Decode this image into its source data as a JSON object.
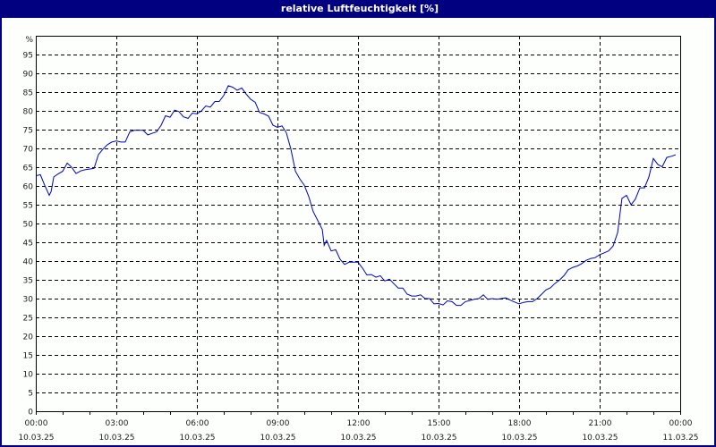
{
  "window": {
    "title": "relative Luftfeuchtigkeit [%]",
    "colors": {
      "titlebar": "#000080",
      "line": "#0000c0",
      "grid": "#000000",
      "background": "#fdfffd"
    }
  },
  "chart_data": {
    "type": "line",
    "title": "relative Luftfeuchtigkeit [%]",
    "xlabel": "",
    "ylabel": "%",
    "ylim": [
      0,
      100
    ],
    "xlim_hours": [
      0,
      24
    ],
    "grid": true,
    "grid_style": "dashed",
    "y_ticks": [
      0,
      5,
      10,
      15,
      20,
      25,
      30,
      35,
      40,
      45,
      50,
      55,
      60,
      65,
      70,
      75,
      80,
      85,
      90,
      95
    ],
    "y_unit_label": "%",
    "x_ticks": [
      {
        "hour": 0,
        "time": "00:00",
        "date": "10.03.25"
      },
      {
        "hour": 3,
        "time": "03:00",
        "date": "10.03.25"
      },
      {
        "hour": 6,
        "time": "06:00",
        "date": "10.03.25"
      },
      {
        "hour": 9,
        "time": "09:00",
        "date": "10.03.25"
      },
      {
        "hour": 12,
        "time": "12:00",
        "date": "10.03.25"
      },
      {
        "hour": 15,
        "time": "15:00",
        "date": "10.03.25"
      },
      {
        "hour": 18,
        "time": "18:00",
        "date": "10.03.25"
      },
      {
        "hour": 21,
        "time": "21:00",
        "date": "10.03.25"
      },
      {
        "hour": 24,
        "time": "00:00",
        "date": "11.03.25"
      }
    ],
    "series": [
      {
        "name": "relative Luftfeuchtigkeit",
        "x_hours": [
          0.0,
          0.17,
          0.33,
          0.5,
          0.57,
          0.67,
          0.83,
          1.0,
          1.17,
          1.33,
          1.5,
          1.67,
          1.83,
          2.0,
          2.17,
          2.33,
          2.5,
          2.67,
          2.83,
          3.0,
          3.17,
          3.33,
          3.5,
          3.67,
          3.83,
          4.0,
          4.17,
          4.33,
          4.5,
          4.67,
          4.83,
          5.0,
          5.17,
          5.33,
          5.5,
          5.67,
          5.83,
          6.0,
          6.17,
          6.33,
          6.5,
          6.67,
          6.83,
          7.0,
          7.17,
          7.33,
          7.5,
          7.67,
          7.83,
          8.0,
          8.17,
          8.33,
          8.5,
          8.67,
          8.83,
          9.0,
          9.17,
          9.33,
          9.5,
          9.67,
          9.83,
          10.0,
          10.17,
          10.33,
          10.5,
          10.67,
          10.74,
          10.83,
          11.0,
          11.17,
          11.33,
          11.5,
          11.67,
          11.83,
          12.0,
          12.17,
          12.33,
          12.5,
          12.67,
          12.83,
          13.0,
          13.17,
          13.33,
          13.5,
          13.67,
          13.83,
          14.0,
          14.17,
          14.33,
          14.5,
          14.67,
          14.83,
          15.0,
          15.17,
          15.33,
          15.5,
          15.67,
          15.83,
          16.0,
          16.17,
          16.33,
          16.5,
          16.67,
          16.83,
          17.0,
          17.17,
          17.33,
          17.5,
          17.67,
          17.83,
          18.0,
          18.17,
          18.33,
          18.5,
          18.67,
          18.83,
          19.0,
          19.17,
          19.33,
          19.5,
          19.67,
          19.83,
          20.0,
          20.17,
          20.33,
          20.5,
          20.67,
          20.83,
          21.0,
          21.17,
          21.33,
          21.5,
          21.67,
          21.83,
          22.0,
          22.17,
          22.33,
          22.5,
          22.67,
          22.83,
          23.0,
          23.17,
          23.33,
          23.5,
          23.67,
          23.83
        ],
        "values": [
          62.7,
          63.0,
          60.2,
          57.5,
          58.5,
          62.4,
          63.2,
          63.9,
          66.1,
          65.0,
          63.3,
          64.0,
          64.3,
          64.5,
          64.7,
          68.3,
          69.8,
          71.0,
          71.7,
          72.0,
          71.7,
          71.7,
          74.4,
          74.8,
          74.8,
          74.8,
          73.6,
          74.0,
          74.4,
          76.2,
          78.7,
          78.3,
          80.2,
          79.8,
          78.4,
          78.0,
          79.4,
          79.2,
          80.0,
          81.3,
          81.0,
          82.5,
          82.5,
          84.1,
          86.7,
          86.3,
          85.5,
          86.1,
          84.5,
          83.1,
          82.3,
          79.6,
          79.2,
          78.6,
          76.2,
          75.6,
          76.0,
          74.2,
          69.8,
          63.9,
          61.9,
          60.2,
          57.1,
          53.2,
          50.8,
          48.4,
          44.2,
          45.5,
          42.7,
          43.0,
          40.5,
          39.1,
          39.7,
          39.7,
          39.7,
          38.1,
          36.3,
          36.4,
          35.7,
          36.1,
          34.7,
          35.2,
          34.0,
          32.8,
          32.8,
          31.2,
          30.7,
          30.7,
          31.0,
          30.0,
          30.0,
          28.6,
          28.7,
          28.3,
          29.4,
          29.2,
          28.2,
          28.2,
          29.2,
          29.5,
          29.8,
          30.0,
          31.0,
          29.8,
          30.0,
          29.8,
          30.0,
          30.2,
          29.6,
          29.1,
          28.6,
          29.0,
          29.2,
          29.2,
          30.0,
          31.1,
          32.3,
          32.9,
          34.0,
          34.9,
          36.1,
          37.7,
          38.3,
          38.7,
          39.3,
          40.2,
          40.7,
          40.9,
          41.7,
          42.2,
          42.7,
          44.0,
          47.6,
          56.7,
          57.5,
          55.0,
          56.5,
          59.5,
          59.5,
          62.3,
          67.3,
          65.7,
          65.1,
          67.6,
          67.9,
          68.3,
          67.6,
          68.6
        ]
      }
    ]
  }
}
